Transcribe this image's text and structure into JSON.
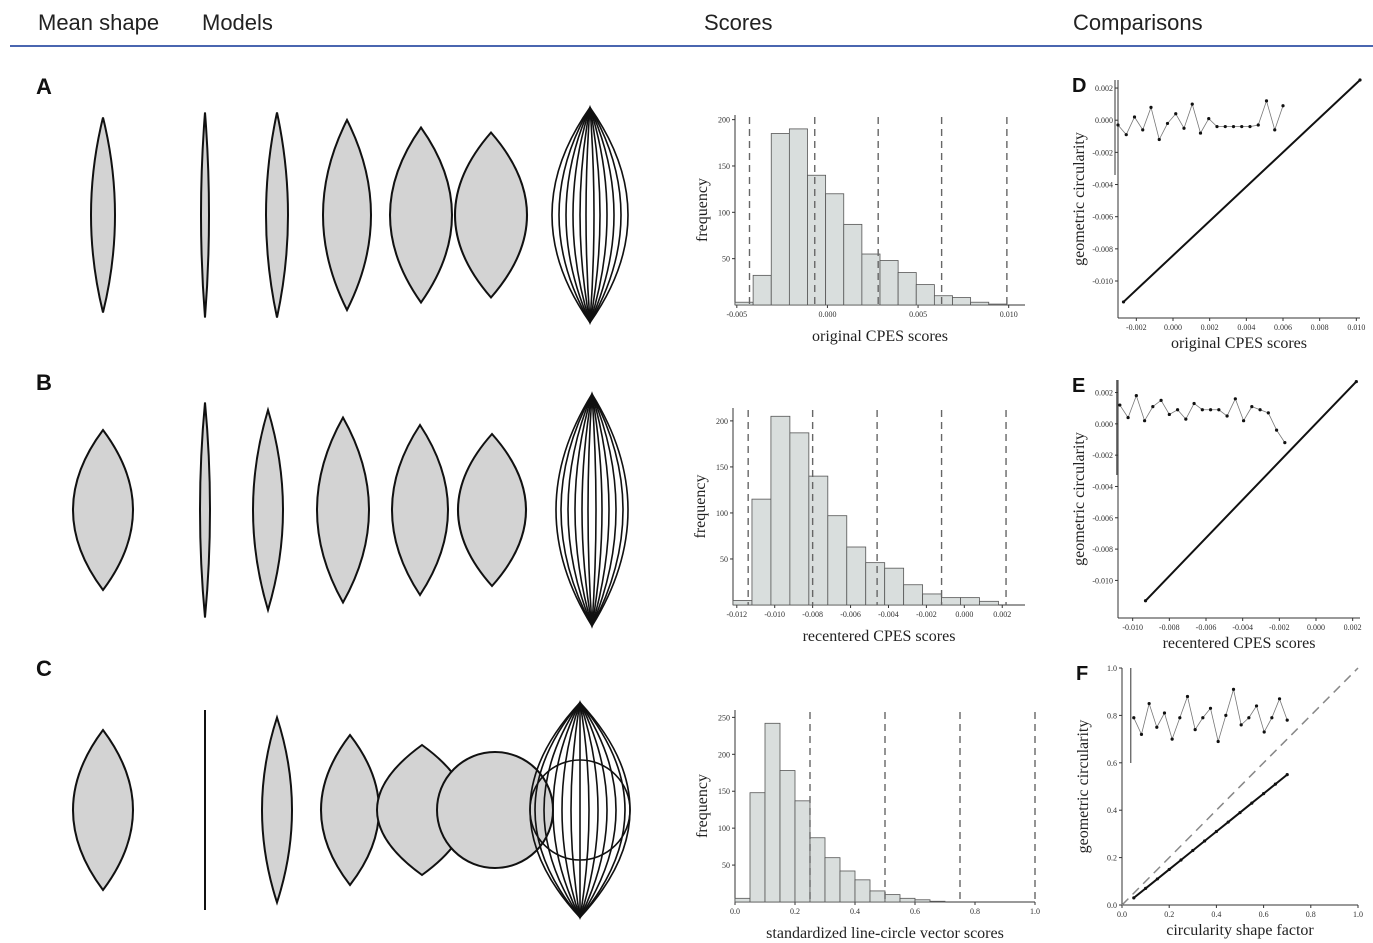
{
  "header": {
    "columns": [
      "Mean shape",
      "Models",
      "Scores",
      "Comparisons"
    ]
  },
  "row_labels": [
    "A",
    "B",
    "C"
  ],
  "chart_data": [
    {
      "type": "histogram",
      "xlabel": "original CPES scores",
      "ylabel": "frequency",
      "bins": [
        -0.0051,
        -0.0041,
        -0.0031,
        -0.0021,
        -0.0011,
        -0.0001,
        0.0009,
        0.0019,
        0.0029,
        0.0039,
        0.0049,
        0.0059,
        0.0069,
        0.0079,
        0.0089,
        0.0099
      ],
      "values": [
        3,
        32,
        185,
        190,
        140,
        120,
        87,
        55,
        48,
        35,
        22,
        10,
        8,
        3,
        1
      ],
      "color": "#d9dedd",
      "dashed_lines": [
        -0.0043,
        -0.0007,
        0.0028,
        0.0063,
        0.0099
      ],
      "xlim": [
        -0.0051,
        0.0109
      ],
      "ylim": [
        0,
        205
      ],
      "xticks": [
        -0.005,
        {
          "value": 0,
          "label": "0.000"
        },
        0.005,
        {
          "value": 0.01,
          "label": "0.010"
        }
      ],
      "yticks": [
        50,
        100,
        150,
        200
      ]
    },
    {
      "type": "histogram",
      "xlabel": "recentered CPES scores",
      "ylabel": "frequency",
      "bins": [
        -0.0122,
        -0.0112,
        -0.0102,
        -0.0092,
        -0.0082,
        -0.0072,
        -0.0062,
        -0.0052,
        -0.0042,
        -0.0032,
        -0.0022,
        -0.0012,
        -0.0002,
        0.0008,
        0.0018
      ],
      "values": [
        5,
        115,
        205,
        187,
        140,
        97,
        63,
        46,
        40,
        22,
        12,
        8,
        8,
        4
      ],
      "color": "#d9dedd",
      "dashed_lines": [
        -0.0114,
        -0.008,
        -0.0046,
        -0.0012,
        0.0022
      ],
      "xlim": [
        -0.0122,
        0.0032
      ],
      "ylim": [
        0,
        214
      ],
      "xticks": [
        -0.012,
        {
          "value": -0.01,
          "label": "-0.010"
        },
        -0.008,
        -0.006,
        -0.004,
        -0.002,
        {
          "value": 0,
          "label": "0.000"
        },
        0.002
      ],
      "yticks": [
        50,
        100,
        150,
        200
      ]
    },
    {
      "type": "histogram",
      "xlabel": "standardized line-circle vector scores",
      "ylabel": "frequency",
      "bins": [
        0,
        0.05,
        0.1,
        0.15,
        0.2,
        0.25,
        0.3,
        0.35,
        0.4,
        0.45,
        0.5,
        0.55,
        0.6,
        0.65,
        0.7
      ],
      "values": [
        5,
        148,
        242,
        178,
        137,
        87,
        60,
        42,
        30,
        15,
        10,
        5,
        3,
        1
      ],
      "color": "#d9dedd",
      "dashed_lines": [
        0.25,
        0.5,
        0.75,
        1
      ],
      "xlim": [
        0,
        1
      ],
      "ylim": [
        0,
        260
      ],
      "xticks": [
        {
          "value": 0,
          "label": "0.0"
        },
        0.2,
        0.4,
        0.6,
        0.8,
        {
          "value": 1,
          "label": "1.0"
        }
      ],
      "yticks": [
        50,
        100,
        150,
        200,
        250
      ]
    },
    {
      "type": "scatter",
      "panel_label": "D",
      "xlabel": "original CPES scores",
      "ylabel": "geometric circularity",
      "xlim": [
        -0.003,
        0.0102
      ],
      "ylim": [
        -0.0123,
        0.0025
      ],
      "xticks": [
        -0.002,
        {
          "value": 0,
          "label": "0.000"
        },
        0.002,
        0.004,
        0.006,
        0.008,
        {
          "value": 0.01,
          "label": "0.010"
        }
      ],
      "yticks": [
        0.002,
        {
          "value": 0,
          "label": "0.000"
        },
        -0.002,
        -0.004,
        -0.006,
        -0.008,
        {
          "value": -0.01,
          "label": "-0.010"
        }
      ],
      "series": [
        {
          "color": "#111111",
          "x": [
            -0.0027,
            0.0102
          ],
          "y": [
            -0.0113,
            0.0025
          ]
        },
        {
          "color": "#777777",
          "x": [
            -0.003,
            -0.00255,
            -0.0021,
            -0.00165,
            -0.0012,
            -0.00075,
            -0.0003,
            0.00015,
            0.0006,
            0.00105,
            0.0015,
            0.00195,
            0.0024,
            0.00285,
            0.0033,
            0.00375,
            0.0042,
            0.00465,
            0.0051,
            0.00555,
            0.006
          ],
          "y": [
            -0.0003,
            -0.0009,
            0.0002,
            -0.0006,
            0.0008,
            -0.0012,
            -0.0002,
            0.0004,
            -0.0005,
            0.001,
            -0.0008,
            0.0001,
            -0.0004,
            -0.0004,
            -0.0004,
            -0.0004,
            -0.0004,
            -0.0003,
            0.0012,
            -0.0006,
            0.0009
          ]
        }
      ]
    },
    {
      "type": "scatter",
      "panel_label": "E",
      "xlabel": "recentered CPES scores",
      "ylabel": "geometric circularity",
      "xlim": [
        -0.0108,
        0.0024
      ],
      "ylim": [
        -0.0124,
        0.0028
      ],
      "xticks": [
        {
          "value": -0.01,
          "label": "-0.010"
        },
        -0.008,
        -0.006,
        -0.004,
        -0.002,
        {
          "value": 0,
          "label": "0.000"
        },
        0.002
      ],
      "yticks": [
        0.002,
        {
          "value": 0,
          "label": "0.000"
        },
        -0.002,
        -0.004,
        -0.006,
        -0.008,
        {
          "value": -0.01,
          "label": "-0.010"
        }
      ],
      "series": [
        {
          "color": "#111111",
          "x": [
            -0.0093,
            0.0022
          ],
          "y": [
            -0.0113,
            0.0027
          ]
        },
        {
          "color": "#777777",
          "x": [
            -0.0107,
            -0.01025,
            -0.0098,
            -0.00935,
            -0.0089,
            -0.00845,
            -0.008,
            -0.00755,
            -0.0071,
            -0.00665,
            -0.0062,
            -0.00575,
            -0.0053,
            -0.00485,
            -0.0044,
            -0.00395,
            -0.0035,
            -0.00305,
            -0.0026,
            -0.00215,
            -0.0017
          ],
          "y": [
            0.0012,
            0.0004,
            0.0018,
            0.0002,
            0.0011,
            0.0015,
            0.0006,
            0.0009,
            0.0003,
            0.0013,
            0.0009,
            0.0009,
            0.0009,
            0.0005,
            0.0016,
            0.0002,
            0.0011,
            0.0009,
            0.0007,
            -0.0004,
            -0.0012
          ]
        }
      ]
    },
    {
      "type": "scatter",
      "panel_label": "F",
      "xlabel": "circularity shape factor",
      "ylabel": "geometric circularity",
      "xlim": [
        0,
        1
      ],
      "ylim": [
        0,
        1
      ],
      "xticks": [
        {
          "value": 0,
          "label": "0.0"
        },
        0.2,
        0.4,
        0.6,
        0.8,
        {
          "value": 1,
          "label": "1.0"
        }
      ],
      "yticks": [
        {
          "value": 0,
          "label": "0.0"
        },
        0.2,
        0.4,
        0.6,
        0.8,
        {
          "value": 1,
          "label": "1.0"
        }
      ],
      "series": [
        {
          "color": "#111111",
          "x": [
            0.05,
            0.1,
            0.15,
            0.2,
            0.25,
            0.3,
            0.35,
            0.4,
            0.45,
            0.5,
            0.55,
            0.6,
            0.65,
            0.7
          ],
          "y": [
            0.03,
            0.07,
            0.11,
            0.15,
            0.19,
            0.23,
            0.27,
            0.31,
            0.35,
            0.39,
            0.43,
            0.47,
            0.51,
            0.55
          ]
        },
        {
          "color": "#777777",
          "x": [
            0.05,
            0.0825,
            0.115,
            0.1475,
            0.18,
            0.2125,
            0.245,
            0.2775,
            0.31,
            0.3425,
            0.375,
            0.4075,
            0.44,
            0.4725,
            0.505,
            0.5375,
            0.57,
            0.6025,
            0.635,
            0.6675,
            0.7
          ],
          "y": [
            0.79,
            0.72,
            0.85,
            0.75,
            0.81,
            0.7,
            0.79,
            0.88,
            0.74,
            0.79,
            0.83,
            0.69,
            0.8,
            0.91,
            0.76,
            0.79,
            0.84,
            0.73,
            0.79,
            0.87,
            0.78
          ]
        }
      ]
    }
  ]
}
